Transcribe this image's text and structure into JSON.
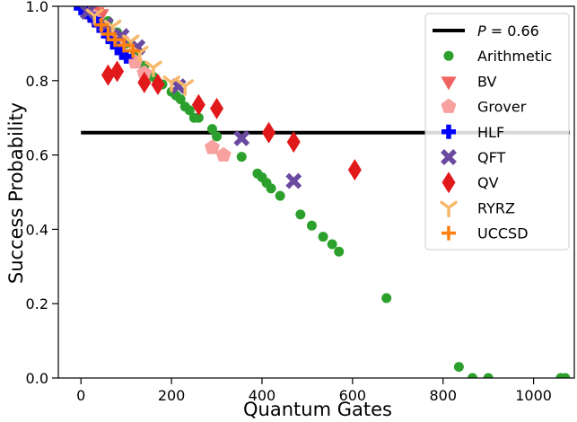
{
  "chart_data": {
    "type": "scatter",
    "xlabel": "Quantum Gates",
    "ylabel": "Success Probability",
    "xlim": [
      -50,
      1090
    ],
    "ylim": [
      0,
      1.0
    ],
    "x_ticks": [
      0,
      200,
      400,
      600,
      800,
      1000
    ],
    "y_ticks": [
      0.0,
      0.2,
      0.4,
      0.6,
      0.8,
      1.0
    ],
    "x_tick_labels": [
      "0",
      "200",
      "400",
      "600",
      "800",
      "1000"
    ],
    "y_tick_labels": [
      "0.0",
      "0.2",
      "0.4",
      "0.6",
      "0.8",
      "1.0"
    ],
    "legend_position": "top-right",
    "threshold": {
      "label_prefix": "P",
      "label_suffix": " = 0.66",
      "y": 0.66,
      "x_range": [
        0,
        1080
      ],
      "color": "#000000"
    },
    "series": [
      {
        "name": "Arithmetic",
        "marker": "circle",
        "color": "#2ca02c",
        "points": [
          [
            60,
            0.96
          ],
          [
            80,
            0.93
          ],
          [
            100,
            0.9
          ],
          [
            120,
            0.87
          ],
          [
            140,
            0.84
          ],
          [
            160,
            0.81
          ],
          [
            180,
            0.79
          ],
          [
            200,
            0.77
          ],
          [
            210,
            0.76
          ],
          [
            220,
            0.75
          ],
          [
            230,
            0.73
          ],
          [
            240,
            0.72
          ],
          [
            250,
            0.7
          ],
          [
            260,
            0.7
          ],
          [
            290,
            0.67
          ],
          [
            300,
            0.65
          ],
          [
            355,
            0.595
          ],
          [
            390,
            0.55
          ],
          [
            400,
            0.54
          ],
          [
            410,
            0.525
          ],
          [
            420,
            0.51
          ],
          [
            440,
            0.49
          ],
          [
            485,
            0.44
          ],
          [
            510,
            0.41
          ],
          [
            535,
            0.38
          ],
          [
            555,
            0.36
          ],
          [
            570,
            0.34
          ],
          [
            675,
            0.215
          ],
          [
            835,
            0.03
          ],
          [
            865,
            0.0
          ],
          [
            900,
            0.0
          ],
          [
            1060,
            0.0
          ],
          [
            1070,
            0.0
          ]
        ]
      },
      {
        "name": "BV",
        "marker": "triangle-down",
        "color": "#ef6461",
        "points": [
          [
            5,
            1.0
          ],
          [
            15,
            0.995
          ],
          [
            25,
            0.99
          ],
          [
            35,
            0.985
          ],
          [
            45,
            0.98
          ]
        ]
      },
      {
        "name": "Grover",
        "marker": "pentagon",
        "color": "#f7a1a0",
        "points": [
          [
            20,
            0.98
          ],
          [
            35,
            0.96
          ],
          [
            60,
            0.93
          ],
          [
            90,
            0.91
          ],
          [
            120,
            0.85
          ],
          [
            140,
            0.82
          ],
          [
            290,
            0.62
          ],
          [
            315,
            0.6
          ]
        ]
      },
      {
        "name": "HLF",
        "marker": "plus-thick",
        "color": "#0000ff",
        "points": [
          [
            0,
            0.995
          ],
          [
            10,
            0.985
          ],
          [
            20,
            0.975
          ],
          [
            30,
            0.965
          ],
          [
            40,
            0.95
          ],
          [
            50,
            0.935
          ],
          [
            60,
            0.92
          ],
          [
            70,
            0.905
          ],
          [
            80,
            0.89
          ],
          [
            90,
            0.875
          ],
          [
            100,
            0.865
          ]
        ]
      },
      {
        "name": "QFT",
        "marker": "x-thick",
        "color": "#6a4aa0",
        "points": [
          [
            15,
            0.985
          ],
          [
            55,
            0.95
          ],
          [
            90,
            0.92
          ],
          [
            125,
            0.89
          ],
          [
            215,
            0.785
          ],
          [
            355,
            0.645
          ],
          [
            470,
            0.53
          ]
        ]
      },
      {
        "name": "QV",
        "marker": "diamond",
        "color": "#e2191b",
        "points": [
          [
            60,
            0.815
          ],
          [
            80,
            0.825
          ],
          [
            140,
            0.795
          ],
          [
            170,
            0.79
          ],
          [
            260,
            0.735
          ],
          [
            300,
            0.725
          ],
          [
            415,
            0.66
          ],
          [
            470,
            0.635
          ],
          [
            605,
            0.56
          ]
        ]
      },
      {
        "name": "RYRZ",
        "marker": "tri-down",
        "color": "#f7b86a",
        "points": [
          [
            30,
            0.975
          ],
          [
            70,
            0.945
          ],
          [
            110,
            0.905
          ],
          [
            130,
            0.875
          ],
          [
            160,
            0.835
          ],
          [
            200,
            0.795
          ],
          [
            230,
            0.785
          ]
        ]
      },
      {
        "name": "UCCSD",
        "marker": "plus",
        "color": "#ff7f0e",
        "points": [
          [
            45,
            0.95
          ],
          [
            60,
            0.925
          ],
          [
            75,
            0.91
          ],
          [
            95,
            0.895
          ],
          [
            115,
            0.88
          ]
        ]
      }
    ]
  }
}
